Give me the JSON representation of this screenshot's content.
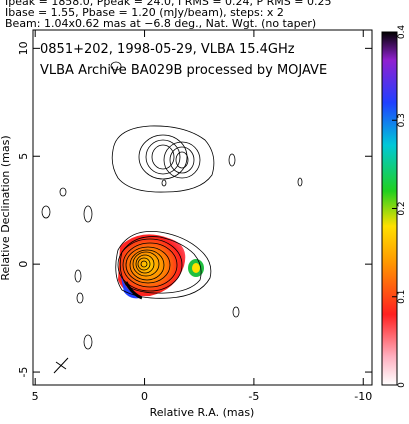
{
  "chart_data": {
    "type": "contour",
    "header": [
      "Ipeak = 1858.0, Ppeak = 24.0, I RMS = 0.24, P RMS = 0.25",
      "Ibase = 1.55, Pbase = 1.20 (mJy/beam), steps: x 2",
      "Beam: 1.04x0.62 mas at −6.8 deg., Nat. Wgt. (no taper)"
    ],
    "title": "0851+202, 1998-05-29, VLBA 15.4GHz",
    "subtitle": "VLBA Archive BA029B processed by MOJAVE",
    "x_label": "Relative R.A. (mas)",
    "y_label": "Relative Declination (mas)",
    "xlim": [
      5.1,
      -10.4
    ],
    "xticks": [
      5,
      0,
      -5,
      -10
    ],
    "ylim": [
      -5.6,
      10.85
    ],
    "yticks": [
      -5,
      0,
      5,
      10
    ],
    "colorbar_lim": [
      0,
      0.4
    ],
    "colorbar_ticks": [
      0,
      0.1,
      0.2,
      0.3,
      0.4
    ]
  }
}
